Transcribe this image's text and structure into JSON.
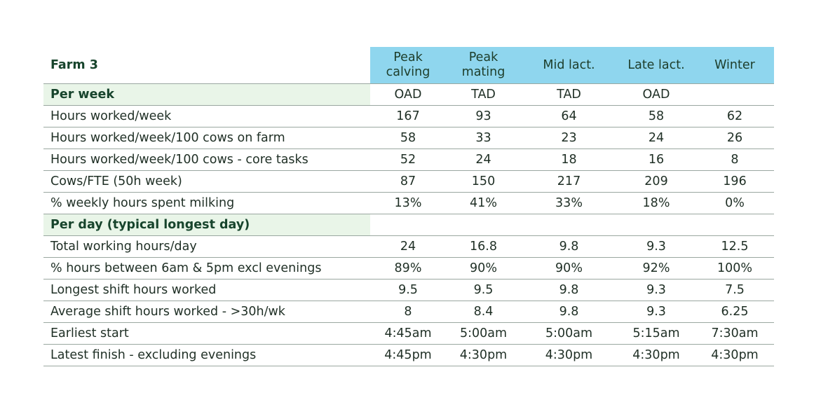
{
  "table": {
    "title": "Farm 3",
    "columns": [
      "Peak calving",
      "Peak mating",
      "Mid lact.",
      "Late lact.",
      "Winter"
    ],
    "column_lines": [
      [
        "Peak",
        "calving"
      ],
      [
        "Peak",
        "mating"
      ],
      [
        "Mid lact."
      ],
      [
        "Late lact."
      ],
      [
        "Winter"
      ]
    ],
    "rows": [
      {
        "section": true,
        "label": "Per week",
        "values": [
          "OAD",
          "TAD",
          "TAD",
          "OAD",
          ""
        ]
      },
      {
        "label": "Hours worked/week",
        "values": [
          "167",
          "93",
          "64",
          "58",
          "62"
        ]
      },
      {
        "label": "Hours worked/week/100  cows on farm",
        "values": [
          "58",
          "33",
          "23",
          "24",
          "26"
        ]
      },
      {
        "label": "Hours worked/week/100 cows - core tasks",
        "values": [
          "52",
          "24",
          "18",
          "16",
          "8"
        ]
      },
      {
        "label": "Cows/FTE (50h week)",
        "values": [
          "87",
          "150",
          "217",
          "209",
          "196"
        ]
      },
      {
        "label": "% weekly hours spent milking",
        "values": [
          "13%",
          "41%",
          "33%",
          "18%",
          "0%"
        ]
      },
      {
        "section": true,
        "label": "Per day (typical longest day)",
        "values": [
          "",
          "",
          "",
          "",
          ""
        ]
      },
      {
        "label": "Total working hours/day",
        "values": [
          "24",
          "16.8",
          "9.8",
          "9.3",
          "12.5"
        ]
      },
      {
        "label": "% hours between 6am & 5pm excl evenings",
        "values": [
          "89%",
          "90%",
          "90%",
          "92%",
          "100%"
        ]
      },
      {
        "label": "Longest shift hours worked",
        "values": [
          "9.5",
          "9.5",
          "9.8",
          "9.3",
          "7.5"
        ]
      },
      {
        "label": "Average shift hours worked - >30h/wk",
        "values": [
          "8",
          "8.4",
          "9.8",
          "9.3",
          "6.25"
        ]
      },
      {
        "label": "Earliest start",
        "values": [
          "4:45am",
          "5:00am",
          "5:00am",
          "5:15am",
          "7:30am"
        ]
      },
      {
        "label": "Latest finish - excluding evenings",
        "values": [
          "4:45pm",
          "4:30pm",
          "4:30pm",
          "4:30pm",
          "4:30pm"
        ]
      }
    ]
  },
  "colors": {
    "header_bg": "#8fd6ee",
    "section_bg": "#e9f5e8",
    "text": "#1f2f25",
    "heading_text": "#17442c",
    "rule": "#9aa7a0"
  }
}
